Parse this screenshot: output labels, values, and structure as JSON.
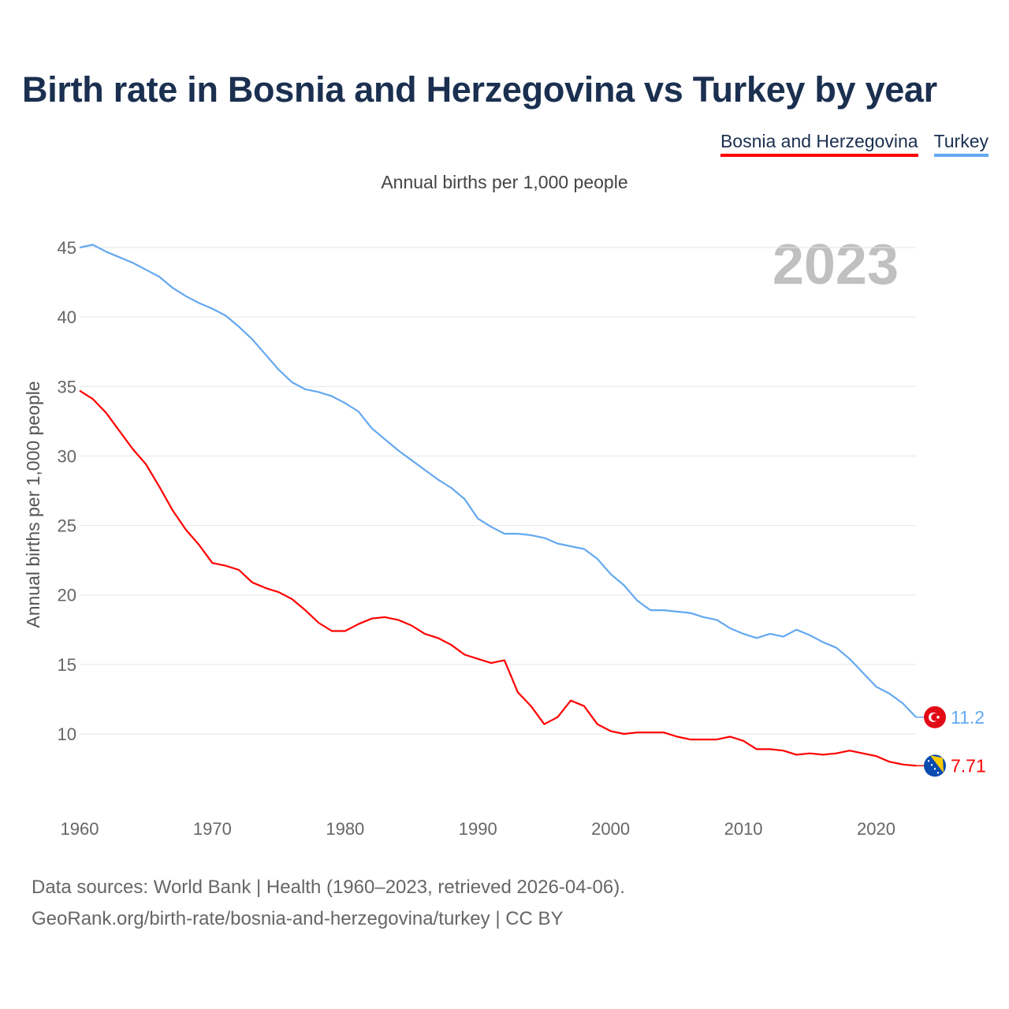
{
  "title": "Birth rate in Bosnia and Herzegovina vs Turkey by year",
  "subtitle": "Annual births per 1,000 people",
  "footer": {
    "line1": "Data sources: World Bank | Health (1960–2023, retrieved 2026-04-06).",
    "line2": "GeoRank.org/birth-rate/bosnia-and-herzegovina/turkey | CC BY"
  },
  "chart_data": {
    "type": "line",
    "title": "Birth rate in Bosnia and Herzegovina vs Turkey by year",
    "ylabel": "Annual births per 1,000 people",
    "xlabel": "",
    "year_label": "2023",
    "xlim": [
      1960,
      2023
    ],
    "ylim": [
      10,
      45
    ],
    "xticks": [
      "1960",
      "1970",
      "1980",
      "1990",
      "2000",
      "2010",
      "2020"
    ],
    "yticks": [
      "10",
      "15",
      "20",
      "25",
      "30",
      "35",
      "40",
      "45"
    ],
    "grid": true,
    "legend": "top-right",
    "x_start": 1960,
    "series": [
      {
        "name": "Bosnia and Herzegovina",
        "color": "#ff0000",
        "end_label": "7.71",
        "flag": "bosnia-flag",
        "values": [
          34.7,
          34.1,
          33.1,
          31.8,
          30.5,
          29.4,
          27.8,
          26.1,
          24.7,
          23.6,
          22.3,
          22.1,
          21.8,
          20.9,
          20.5,
          20.2,
          19.7,
          18.9,
          18.0,
          17.4,
          17.4,
          17.9,
          18.3,
          18.4,
          18.2,
          17.8,
          17.2,
          16.9,
          16.4,
          15.7,
          15.4,
          15.1,
          15.3,
          13.0,
          12.0,
          10.7,
          11.2,
          12.4,
          12.0,
          10.7,
          10.2,
          10.0,
          10.1,
          10.1,
          10.1,
          9.8,
          9.6,
          9.6,
          9.6,
          9.8,
          9.5,
          8.9,
          8.9,
          8.8,
          8.5,
          8.6,
          8.5,
          8.6,
          8.8,
          8.6,
          8.4,
          8.0,
          7.8,
          7.71
        ]
      },
      {
        "name": "Turkey",
        "color": "#64a8f0",
        "end_label": "11.2",
        "flag": "turkey-flag",
        "values": [
          45.0,
          45.2,
          44.7,
          44.3,
          43.9,
          43.4,
          42.9,
          42.1,
          41.5,
          41.0,
          40.6,
          40.1,
          39.3,
          38.4,
          37.3,
          36.2,
          35.3,
          34.8,
          34.6,
          34.3,
          33.8,
          33.2,
          32.0,
          31.2,
          30.4,
          29.7,
          29.0,
          28.3,
          27.7,
          26.9,
          25.5,
          24.9,
          24.4,
          24.4,
          24.3,
          24.1,
          23.7,
          23.5,
          23.3,
          22.6,
          21.5,
          20.7,
          19.6,
          18.9,
          18.9,
          18.8,
          18.7,
          18.4,
          18.2,
          17.6,
          17.2,
          16.9,
          17.2,
          17.0,
          17.5,
          17.1,
          16.6,
          16.2,
          15.4,
          14.4,
          13.4,
          12.9,
          12.2,
          11.2
        ]
      }
    ]
  }
}
